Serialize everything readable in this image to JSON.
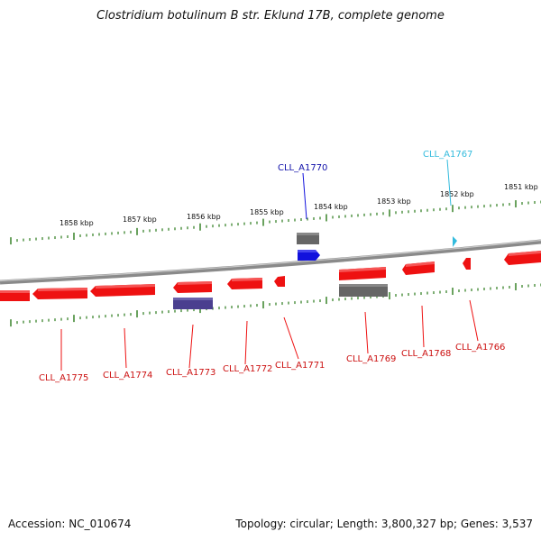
{
  "title": "Clostridium botulinum B str. Eklund 17B, complete genome",
  "footer": {
    "accession": "Accession: NC_010674",
    "summary": "Topology: circular; Length: 3,800,327 bp; Genes: 3,537"
  },
  "colors": {
    "forward_gene": "#ee1111",
    "other_gene": "#666666",
    "blue_gene": "#1111dd",
    "purple_gene": "#4a3f8f",
    "cyan_gene": "#33bbdd",
    "tick": "#2a7a1a",
    "backbone": "#8a8a8a"
  },
  "kbp_labels": [
    "1858 kbp",
    "1857 kbp",
    "1856 kbp",
    "1855 kbp",
    "1854 kbp",
    "1853 kbp",
    "1852 kbp",
    "1851 kbp"
  ],
  "gene_labels": {
    "CLL_A1770": "CLL_A1770",
    "CLL_A1767": "CLL_A1767",
    "CLL_A1775": "CLL_A1775",
    "CLL_A1774": "CLL_A1774",
    "CLL_A1773": "CLL_A1773",
    "CLL_A1772": "CLL_A1772",
    "CLL_A1771": "CLL_A1771",
    "CLL_A1769": "CLL_A1769",
    "CLL_A1768": "CLL_A1768",
    "CLL_A1766": "CLL_A1766"
  }
}
